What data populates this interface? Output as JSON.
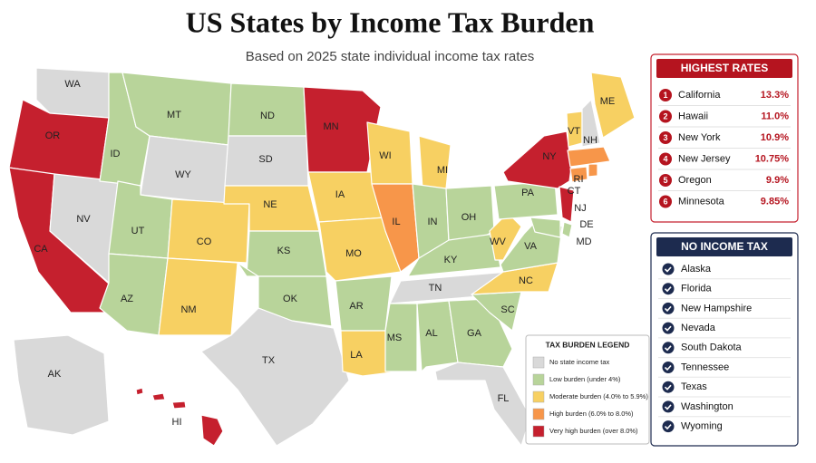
{
  "title": "US States by Income Tax Burden",
  "subtitle": "Based on 2025 state individual income tax rates",
  "legend": {
    "title": "TAX BURDEN LEGEND",
    "items": [
      {
        "label": "No state income tax",
        "color": "#d9d9d9"
      },
      {
        "label": "Low burden (under 4%)",
        "color": "#b8d49a"
      },
      {
        "label": "Moderate burden (4.0% to 5.9%)",
        "color": "#f7d062"
      },
      {
        "label": "High burden (6.0% to 8.0%)",
        "color": "#f7964a"
      },
      {
        "label": "Very high burden (over 8.0%)",
        "color": "#c5202e"
      }
    ]
  },
  "states": [
    {
      "label": "WA",
      "tier": 0
    },
    {
      "label": "OR",
      "tier": 4
    },
    {
      "label": "CA",
      "tier": 4
    },
    {
      "label": "NV",
      "tier": 0
    },
    {
      "label": "ID",
      "tier": 1
    },
    {
      "label": "MT",
      "tier": 1
    },
    {
      "label": "WY",
      "tier": 0
    },
    {
      "label": "UT",
      "tier": 1
    },
    {
      "label": "AZ",
      "tier": 1
    },
    {
      "label": "CO",
      "tier": 2
    },
    {
      "label": "NM",
      "tier": 2
    },
    {
      "label": "ND",
      "tier": 1
    },
    {
      "label": "SD",
      "tier": 0
    },
    {
      "label": "NE",
      "tier": 2
    },
    {
      "label": "KS",
      "tier": 1
    },
    {
      "label": "OK",
      "tier": 1
    },
    {
      "label": "TX",
      "tier": 0
    },
    {
      "label": "MN",
      "tier": 4
    },
    {
      "label": "IA",
      "tier": 2
    },
    {
      "label": "MO",
      "tier": 2
    },
    {
      "label": "AR",
      "tier": 1
    },
    {
      "label": "LA",
      "tier": 2
    },
    {
      "label": "WI",
      "tier": 2
    },
    {
      "label": "IL",
      "tier": 3
    },
    {
      "label": "MI",
      "tier": 2
    },
    {
      "label": "IN",
      "tier": 1
    },
    {
      "label": "OH",
      "tier": 1
    },
    {
      "label": "KY",
      "tier": 1
    },
    {
      "label": "TN",
      "tier": 0
    },
    {
      "label": "MS",
      "tier": 1
    },
    {
      "label": "AL",
      "tier": 1
    },
    {
      "label": "GA",
      "tier": 1
    },
    {
      "label": "FL",
      "tier": 0
    },
    {
      "label": "SC",
      "tier": 1
    },
    {
      "label": "NC",
      "tier": 2
    },
    {
      "label": "VA",
      "tier": 1
    },
    {
      "label": "WV",
      "tier": 2
    },
    {
      "label": "PA",
      "tier": 1
    },
    {
      "label": "NY",
      "tier": 4
    },
    {
      "label": "NJ",
      "tier": 4
    },
    {
      "label": "DE",
      "tier": 1
    },
    {
      "label": "MD",
      "tier": 1
    },
    {
      "label": "CT",
      "tier": 3
    },
    {
      "label": "RI",
      "tier": 3
    },
    {
      "label": null,
      "tier": 3
    },
    {
      "label": "VT",
      "tier": 2
    },
    {
      "label": "NH",
      "tier": 0
    },
    {
      "label": "ME",
      "tier": 2
    },
    {
      "label": "AK",
      "tier": 0
    },
    {
      "label": "HI",
      "tier": 4
    }
  ],
  "highest_rates": {
    "title": "HIGHEST RATES",
    "rows": [
      {
        "rank": "1",
        "state": "California",
        "rate": "13.3%"
      },
      {
        "rank": "2",
        "state": "Hawaii",
        "rate": "11.0%"
      },
      {
        "rank": "3",
        "state": "New York",
        "rate": "10.9%"
      },
      {
        "rank": "4",
        "state": "New Jersey",
        "rate": "10.75%"
      },
      {
        "rank": "5",
        "state": "Oregon",
        "rate": "9.9%"
      },
      {
        "rank": "6",
        "state": "Minnesota",
        "rate": "9.85%"
      }
    ]
  },
  "no_income_tax": {
    "title": "NO INCOME TAX",
    "states": [
      "Alaska",
      "Florida",
      "New Hampshire",
      "Nevada",
      "South Dakota",
      "Tennessee",
      "Texas",
      "Washington",
      "Wyoming"
    ]
  }
}
